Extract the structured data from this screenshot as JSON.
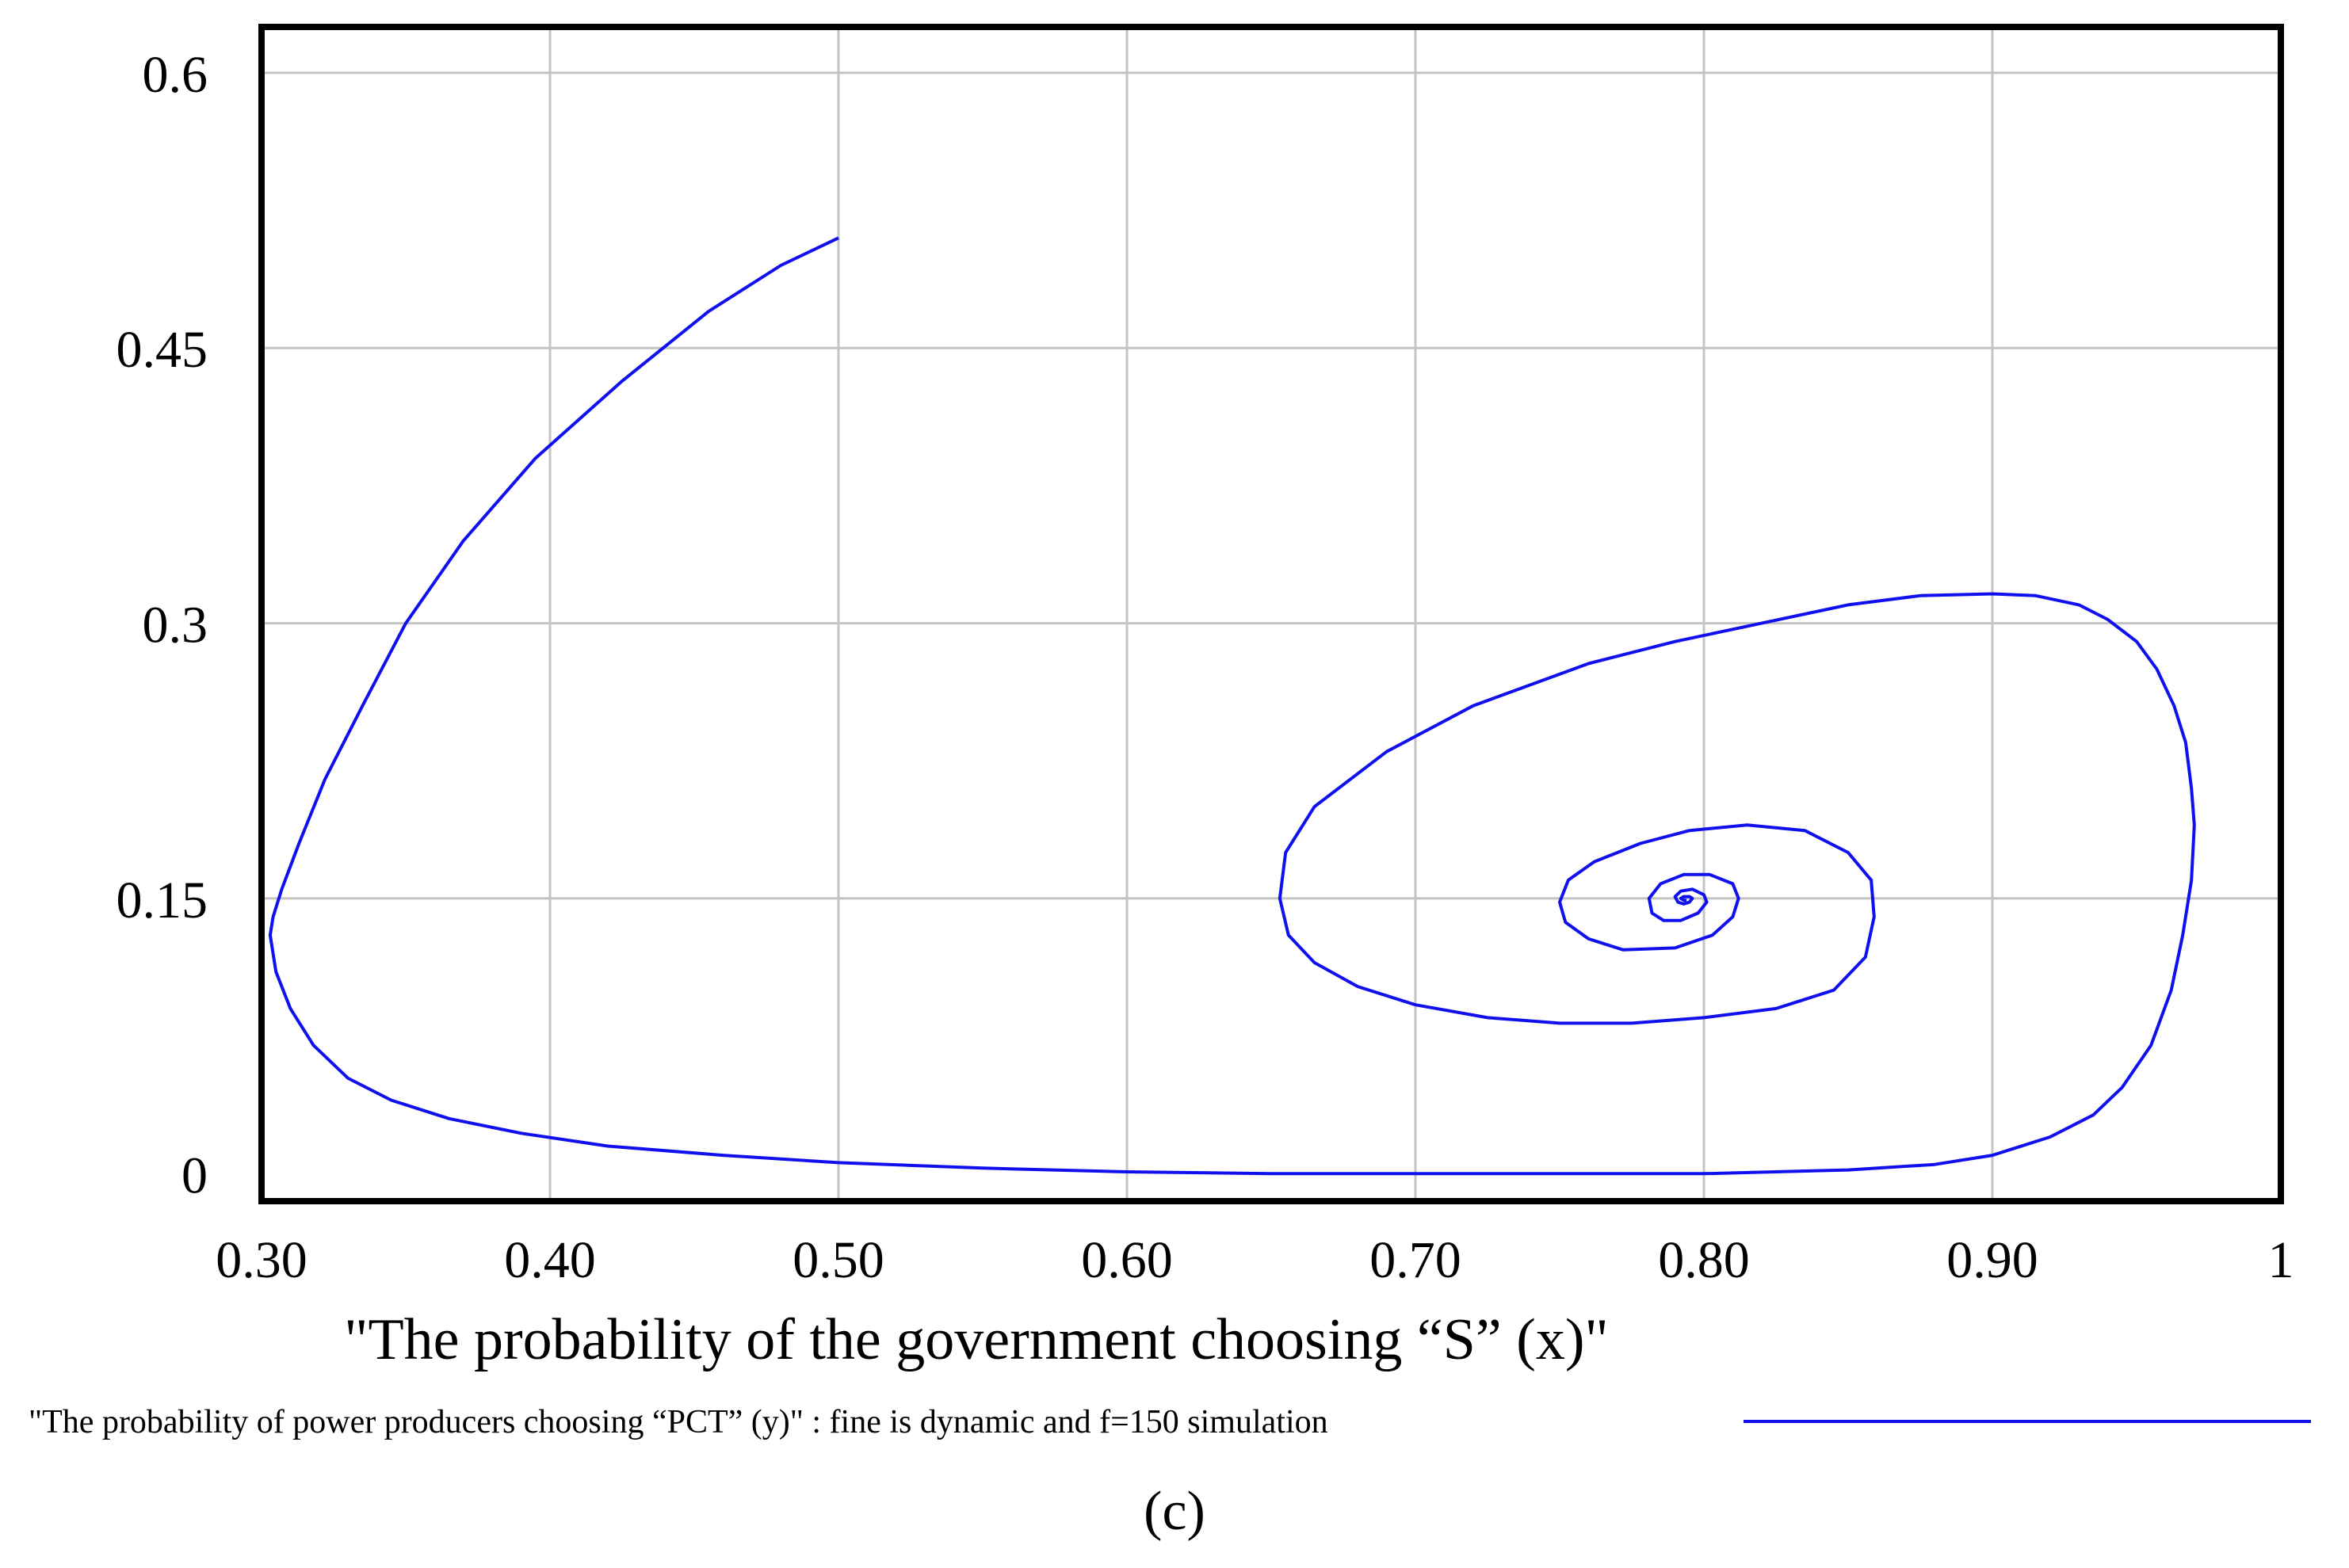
{
  "chart_data": {
    "type": "line",
    "xlabel": "\"The probability of the government choosing “S” (x)\"",
    "ylabel": "",
    "xlim": [
      0.3,
      1.0
    ],
    "ylim": [
      -0.015,
      0.625
    ],
    "x_ticks": [
      "0.30",
      "0.40",
      "0.50",
      "0.60",
      "0.70",
      "0.80",
      "0.90",
      "1"
    ],
    "x_tick_values": [
      0.3,
      0.4,
      0.5,
      0.6,
      0.7,
      0.8,
      0.9,
      1.0
    ],
    "y_ticks": [
      "0",
      "0.15",
      "0.3",
      "0.45",
      "0.6"
    ],
    "y_tick_values": [
      0,
      0.15,
      0.3,
      0.45,
      0.6
    ],
    "grid": true,
    "legend_position": "bottom",
    "series": [
      {
        "name": "\"The probability of power producers choosing “PCT” (y)\" : fine is dynamic and f=150 simulation",
        "color": "#1010ee",
        "x": [
          0.5,
          0.48,
          0.455,
          0.425,
          0.395,
          0.37,
          0.35,
          0.335,
          0.322,
          0.313,
          0.307,
          0.304,
          0.303,
          0.305,
          0.31,
          0.318,
          0.33,
          0.345,
          0.365,
          0.39,
          0.42,
          0.46,
          0.5,
          0.55,
          0.6,
          0.65,
          0.7,
          0.75,
          0.8,
          0.85,
          0.88,
          0.9,
          0.92,
          0.935,
          0.945,
          0.955,
          0.962,
          0.966,
          0.969,
          0.97,
          0.969,
          0.967,
          0.963,
          0.957,
          0.95,
          0.94,
          0.93,
          0.915,
          0.9,
          0.875,
          0.85,
          0.82,
          0.79,
          0.76,
          0.72,
          0.69,
          0.665,
          0.655,
          0.653,
          0.656,
          0.665,
          0.68,
          0.7,
          0.725,
          0.75,
          0.775,
          0.8,
          0.825,
          0.845,
          0.856,
          0.859,
          0.858,
          0.85,
          0.835,
          0.815,
          0.795,
          0.778,
          0.762,
          0.753,
          0.75,
          0.752,
          0.76,
          0.772,
          0.79,
          0.803,
          0.81,
          0.812,
          0.81,
          0.802,
          0.793,
          0.785,
          0.781,
          0.782,
          0.786,
          0.792,
          0.798,
          0.801,
          0.8,
          0.796,
          0.792,
          0.79,
          0.791,
          0.793,
          0.795,
          0.796,
          0.795,
          0.793,
          0.792,
          0.793,
          0.794
        ],
        "y": [
          0.51,
          0.495,
          0.47,
          0.432,
          0.39,
          0.345,
          0.3,
          0.255,
          0.215,
          0.18,
          0.155,
          0.14,
          0.13,
          0.11,
          0.09,
          0.07,
          0.052,
          0.04,
          0.03,
          0.022,
          0.015,
          0.01,
          0.006,
          0.003,
          0.001,
          0.0,
          0.0,
          0.0,
          0.0,
          0.002,
          0.005,
          0.01,
          0.02,
          0.032,
          0.047,
          0.07,
          0.1,
          0.13,
          0.16,
          0.19,
          0.21,
          0.235,
          0.255,
          0.275,
          0.29,
          0.302,
          0.31,
          0.315,
          0.316,
          0.315,
          0.31,
          0.3,
          0.29,
          0.278,
          0.255,
          0.23,
          0.2,
          0.175,
          0.15,
          0.13,
          0.115,
          0.102,
          0.092,
          0.085,
          0.082,
          0.082,
          0.085,
          0.09,
          0.1,
          0.118,
          0.14,
          0.16,
          0.175,
          0.187,
          0.19,
          0.187,
          0.18,
          0.17,
          0.16,
          0.148,
          0.137,
          0.128,
          0.122,
          0.123,
          0.13,
          0.14,
          0.15,
          0.158,
          0.163,
          0.163,
          0.158,
          0.15,
          0.142,
          0.138,
          0.138,
          0.142,
          0.148,
          0.152,
          0.155,
          0.154,
          0.151,
          0.148,
          0.147,
          0.148,
          0.15,
          0.151,
          0.151,
          0.15,
          0.149,
          0.149
        ]
      }
    ]
  },
  "panel_label": "(c)"
}
